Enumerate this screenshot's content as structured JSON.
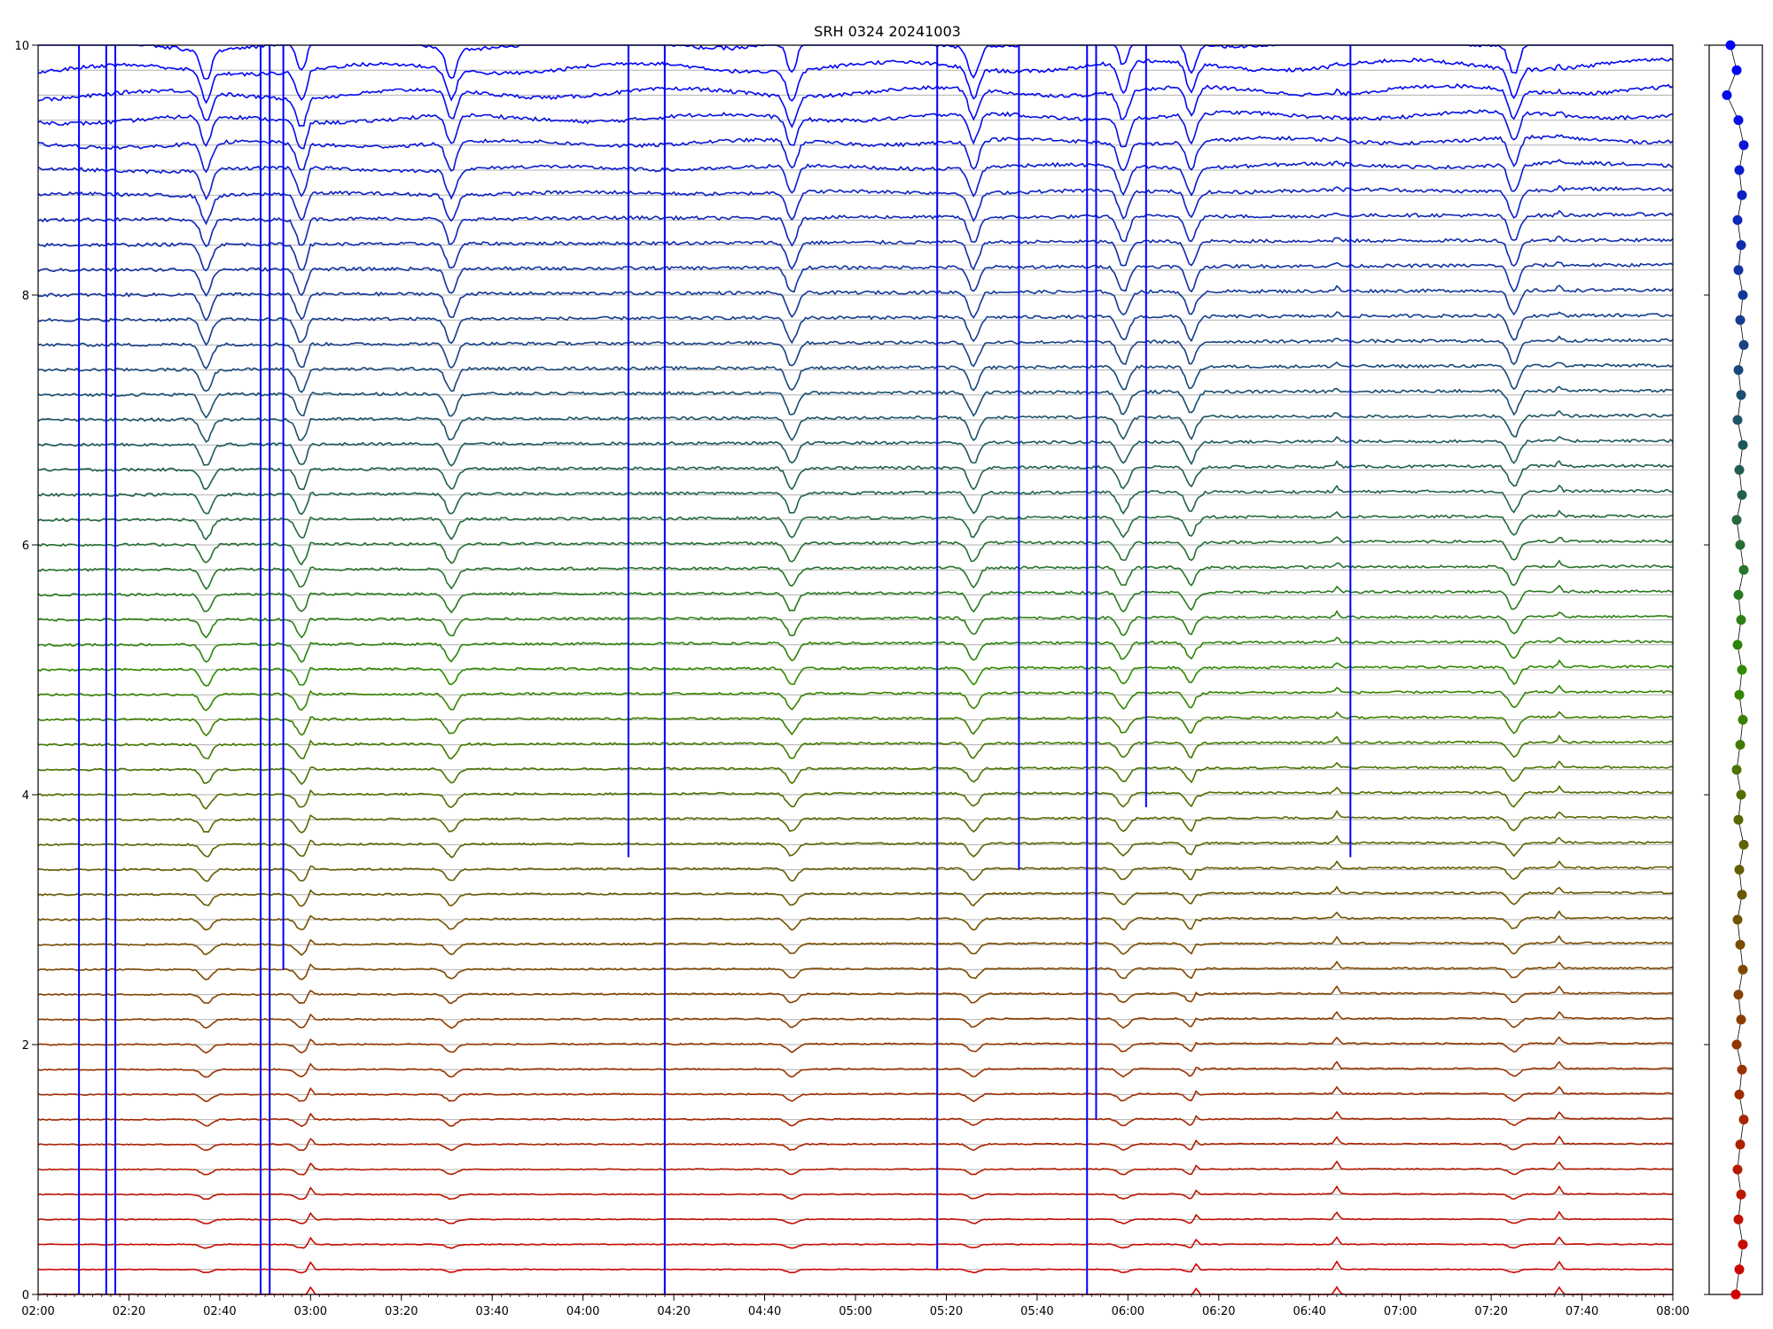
{
  "chart_data": [
    {
      "type": "line",
      "title": "SRH 0324 20241003",
      "xlabel": "",
      "ylabel": "",
      "x_ticks": [
        "02:00",
        "02:20",
        "02:40",
        "03:00",
        "03:20",
        "03:40",
        "04:00",
        "04:20",
        "04:40",
        "05:00",
        "05:20",
        "05:40",
        "06:00",
        "06:20",
        "06:40",
        "07:00",
        "07:20",
        "07:40",
        "08:00"
      ],
      "x_range": [
        "02:00",
        "08:00"
      ],
      "ylim": [
        0,
        10
      ],
      "y_ticks": [
        0,
        2,
        4,
        6,
        8,
        10
      ],
      "grid": "horizontal lines at each channel baseline",
      "n_channels": 51,
      "channel_spacing": 0.2,
      "color_gradient": {
        "bottom": "#d40000",
        "middle": "#2f8a00",
        "top": "#0000ff"
      },
      "events": [
        {
          "time": "03:00",
          "kind": "spike"
        },
        {
          "time": "06:15",
          "kind": "spike"
        },
        {
          "time": "06:46",
          "kind": "spike"
        },
        {
          "time": "07:35",
          "kind": "small spike"
        }
      ],
      "dips": [
        {
          "time": "02:37",
          "kind": "dip"
        },
        {
          "time": "02:58",
          "kind": "dip"
        },
        {
          "time": "03:31",
          "kind": "dip"
        },
        {
          "time": "04:46",
          "kind": "dip"
        },
        {
          "time": "05:26",
          "kind": "dip"
        },
        {
          "time": "05:59",
          "kind": "dip"
        },
        {
          "time": "06:14",
          "kind": "dip"
        },
        {
          "time": "07:25",
          "kind": "dip"
        }
      ],
      "glitches": [
        {
          "time": "02:09",
          "low": 0
        },
        {
          "time": "02:15",
          "low": 0
        },
        {
          "time": "02:17",
          "low": 0
        },
        {
          "time": "02:49",
          "low": 0
        },
        {
          "time": "02:51",
          "low": 0
        },
        {
          "time": "02:54",
          "low": 2.6
        },
        {
          "time": "04:10",
          "low": 3.5
        },
        {
          "time": "04:18",
          "low": 0
        },
        {
          "time": "05:18",
          "low": 0.2
        },
        {
          "time": "05:36",
          "low": 3.4
        },
        {
          "time": "05:51",
          "low": 0
        },
        {
          "time": "05:53",
          "low": 1.4
        },
        {
          "time": "06:04",
          "low": 3.9
        },
        {
          "time": "06:49",
          "low": 3.5
        }
      ]
    },
    {
      "type": "scatter",
      "title": "",
      "xlabel": "",
      "ylabel": "",
      "ylim": [
        0,
        10
      ],
      "x_offsets": [
        0.0,
        0.4,
        0.8,
        0.3,
        0.6,
        0.2,
        0.5,
        0.9,
        0.4,
        0.7,
        0.1,
        0.6,
        0.3,
        0.8,
        0.5,
        0.2,
        0.7,
        0.4,
        0.9,
        0.3,
        0.6,
        0.1,
        0.5,
        0.8,
        0.4,
        0.7,
        0.2,
        0.6,
        0.3,
        0.9,
        0.5,
        0.1,
        0.7,
        0.4,
        0.8,
        0.2,
        0.6,
        0.3,
        0.9,
        0.5,
        0.8,
        0.3,
        0.6,
        0.2,
        0.7,
        0.4,
        0.9,
        0.3,
        -1.0,
        0.1,
        -0.6
      ]
    }
  ]
}
